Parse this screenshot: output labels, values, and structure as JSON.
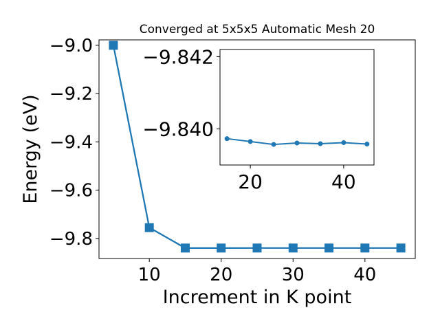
{
  "chart_data": [
    {
      "type": "line",
      "title": "Converged at 5x5x5 Automatic Mesh 20",
      "xlabel": "Increment in K point",
      "ylabel": "Energy (eV)",
      "xlim": [
        3.0,
        47.0
      ],
      "ylim": [
        -9.883,
        -8.9775
      ],
      "x_ticks": [
        10,
        20,
        30,
        40
      ],
      "y_ticks": [
        -9.0,
        -9.2,
        -9.4,
        -9.6,
        -9.8
      ],
      "y_tick_labels": [
        "−9.0",
        "−9.2",
        "−9.4",
        "−9.6",
        "−9.8"
      ],
      "marker": "square",
      "color": "#1f77b4",
      "grid": false,
      "series": [
        {
          "x": [
            5,
            10,
            15,
            20,
            25,
            30,
            35,
            40,
            45
          ],
          "y": [
            -9.0,
            -9.755,
            -9.8397,
            -9.8397,
            -9.8396,
            -9.8396,
            -9.8396,
            -9.8396,
            -9.8396
          ]
        }
      ]
    },
    {
      "type": "line",
      "inset": true,
      "xlim": [
        13.5,
        46.5
      ],
      "ylim": [
        -9.839,
        -9.8422
      ],
      "x_ticks": [
        20,
        40
      ],
      "y_ticks": [
        -9.842,
        -9.84
      ],
      "y_tick_labels": [
        "−9.842",
        "−9.840"
      ],
      "marker": "circle",
      "color": "#1f77b4",
      "grid": false,
      "series": [
        {
          "x": [
            15,
            20,
            25,
            30,
            35,
            40,
            45
          ],
          "y": [
            -9.83973,
            -9.83965,
            -9.83957,
            -9.83961,
            -9.83959,
            -9.83962,
            -9.83958
          ]
        }
      ]
    }
  ]
}
